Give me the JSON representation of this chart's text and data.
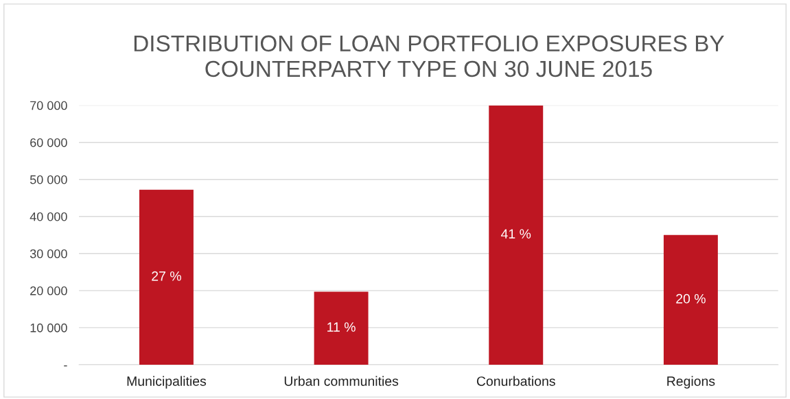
{
  "chart_data": {
    "type": "bar",
    "title": "DISTRIBUTION OF LOAN PORTFOLIO EXPOSURES BY\nCOUNTERPARTY TYPE ON 30 JUNE 2015",
    "categories": [
      "Municipalities",
      "Urban communities",
      "Conurbations",
      "Regions"
    ],
    "values": [
      47200,
      19700,
      70000,
      35000
    ],
    "annotations": [
      "27 %",
      "11 %",
      "41 %",
      "20 %"
    ],
    "color": "#be1622",
    "ylim": [
      0,
      70000
    ],
    "yticks": [
      {
        "value": 0,
        "label": "-"
      },
      {
        "value": 10000,
        "label": "10 000"
      },
      {
        "value": 20000,
        "label": "20 000"
      },
      {
        "value": 30000,
        "label": "30 000"
      },
      {
        "value": 40000,
        "label": "40 000"
      },
      {
        "value": 50000,
        "label": "50 000"
      },
      {
        "value": 60000,
        "label": "60 000"
      },
      {
        "value": 70000,
        "label": "70 000"
      }
    ],
    "grid": "y"
  }
}
